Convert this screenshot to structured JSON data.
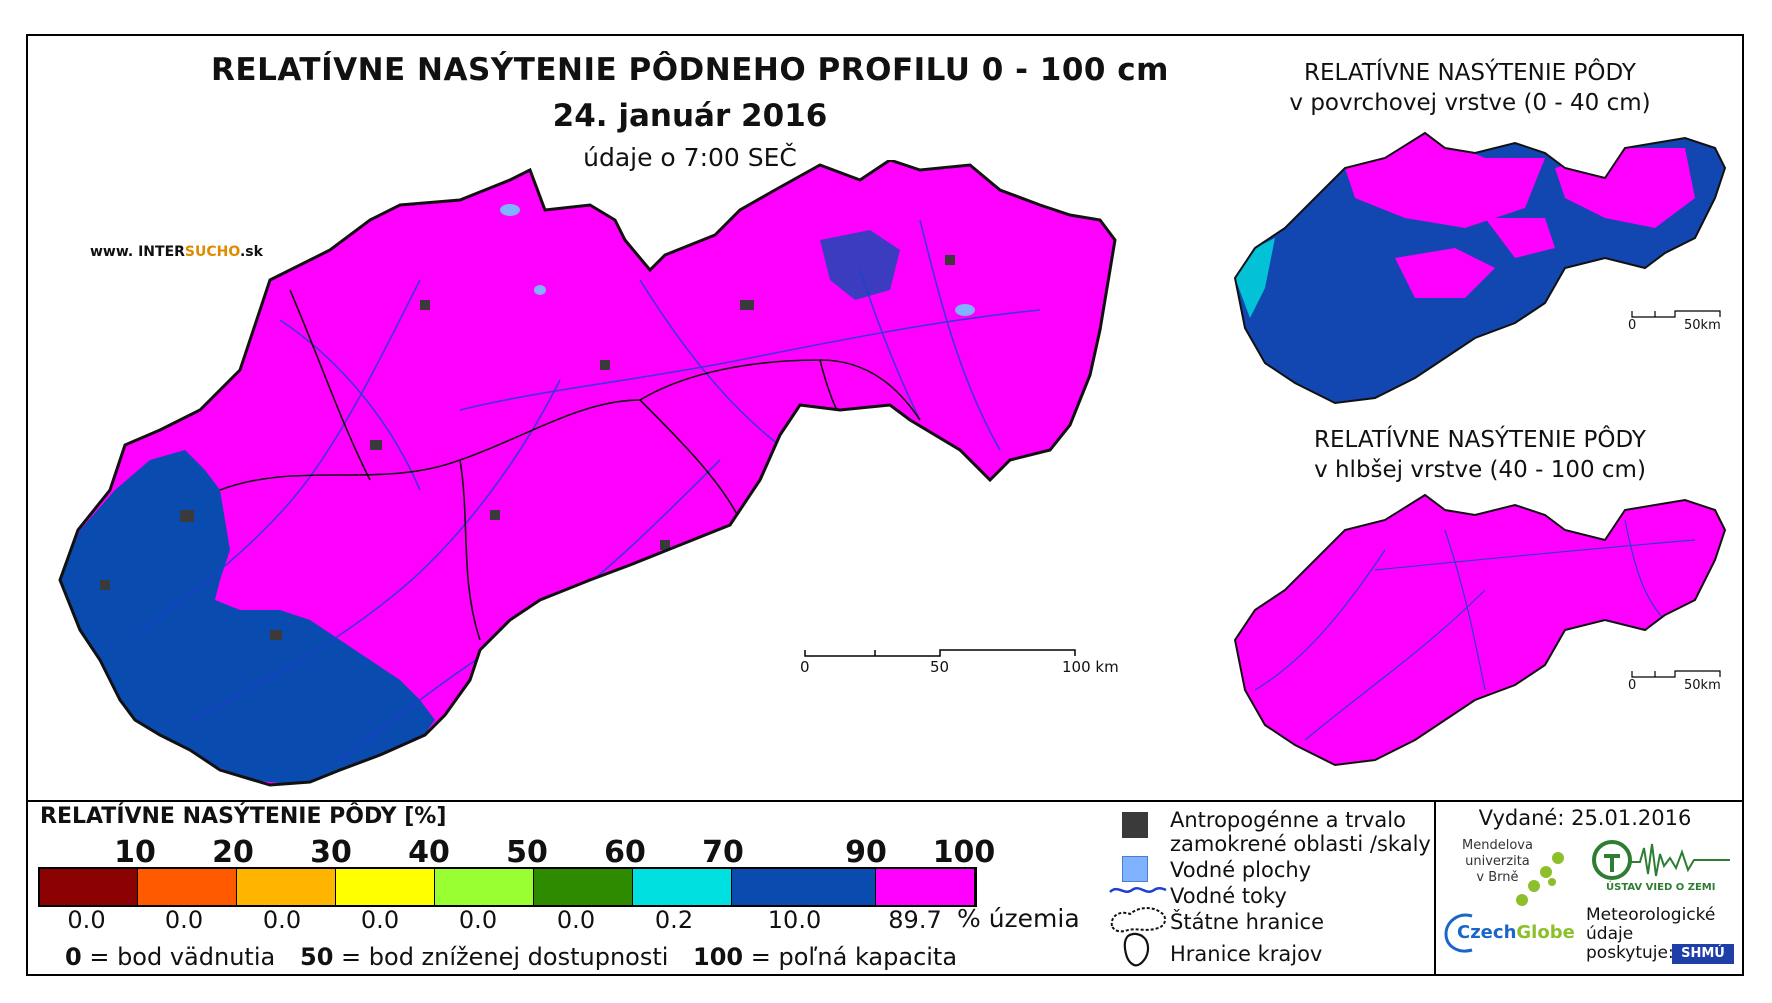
{
  "map": {
    "title": "RELATÍVNE NASÝTENIE PÔDNEHO PROFILU 0 - 100 cm",
    "date": "24. január 2016",
    "time": "údaje o 7:00 SEČ",
    "website_prefix": "www. INTER",
    "website_accent": "SUCHO",
    "website_suffix": ".sk",
    "scale": {
      "label_0": "0",
      "label_50": "50",
      "label_100": "100 km"
    }
  },
  "inset_top": {
    "title_line1": "RELATÍVNE NASÝTENIE PÔDY",
    "title_line2": "v povrchovej vrstve (0 - 40 cm)",
    "scale_0": "0",
    "scale_50": "50km"
  },
  "inset_bottom": {
    "title_line1": "RELATÍVNE NASÝTENIE PÔDY",
    "title_line2": "v hlbšej vrstve (40 - 100 cm)",
    "scale_0": "0",
    "scale_50": "50km"
  },
  "legend": {
    "title": "RELATÍVNE NASÝTENIE PÔDY [%]",
    "ticks": [
      "10",
      "20",
      "30",
      "40",
      "50",
      "60",
      "70",
      "90",
      "100"
    ],
    "classes": [
      {
        "color": "#8b0000",
        "percent": "0.0"
      },
      {
        "color": "#ff5a00",
        "percent": "0.0"
      },
      {
        "color": "#ffb400",
        "percent": "0.0"
      },
      {
        "color": "#ffff00",
        "percent": "0.0"
      },
      {
        "color": "#99ff33",
        "percent": "0.0"
      },
      {
        "color": "#2e8b00",
        "percent": "0.0"
      },
      {
        "color": "#00e0e0",
        "percent": "0.2"
      },
      {
        "color": "#0a4bb0",
        "percent": "10.0"
      },
      {
        "color": "#ff00ff",
        "percent": "89.7"
      }
    ],
    "percent_unit": "% územia",
    "note1_value": "0",
    "note1_text": " = bod vädnutia",
    "note2_value": "50",
    "note2_text": " = bod zníženej dostupnosti",
    "note3_value": "100",
    "note3_text": " = poľná kapacita"
  },
  "symbols": {
    "anthropogenic_line1": "Antropogénne a trvalo",
    "anthropogenic_line2": "zamokrené oblasti /skaly",
    "water_areas": "Vodné plochy",
    "water_streams": "Vodné toky",
    "state_border": "Štátne hranice",
    "region_border": "Hranice krajov",
    "anthropogenic_color": "#3a3a3a",
    "water_color": "#7fb2ff"
  },
  "credits": {
    "issued": "Vydané: 25.01.2016",
    "mendel": [
      "Mendelova",
      "univerzita",
      "v Brně"
    ],
    "czechglobe_a": "Czech",
    "czechglobe_b": "Globe",
    "ustav": "ÚSTAV VIED O ZEMI",
    "meteo": [
      "Meteorologické",
      "údaje",
      "poskytuje:"
    ],
    "shmu": "SHMÚ"
  }
}
